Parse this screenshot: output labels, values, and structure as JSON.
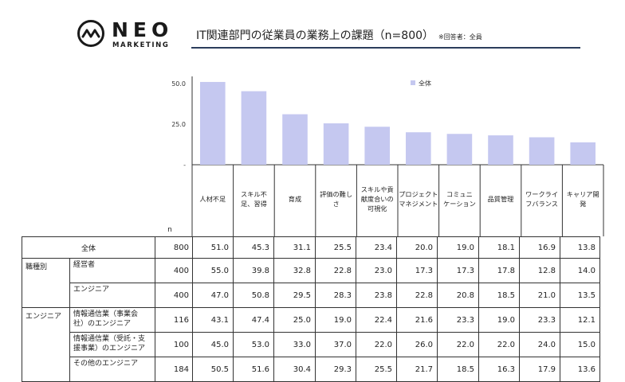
{
  "logo": {
    "main": "NEO",
    "sub": "MARKETING"
  },
  "title": "IT関連部門の従業員の業務上の課題（n=800）",
  "title_note": "※回答者：全員",
  "chart_data": {
    "type": "bar",
    "categories": [
      "人材不足",
      "スキル不足、習得",
      "育成",
      "評価の難しさ",
      "スキルや貢献度合いの可視化",
      "プロジェクトマネジメント",
      "コミュニケーション",
      "品質管理",
      "ワークライフバランス",
      "キャリア開発"
    ],
    "category_lines": [
      [
        "人材不足"
      ],
      [
        "スキル不",
        "足、習得"
      ],
      [
        "育成"
      ],
      [
        "評価の難し",
        "さ"
      ],
      [
        "スキルや貢",
        "献度合いの",
        "可視化"
      ],
      [
        "プロジェクト",
        "マネジメント"
      ],
      [
        "コミュニ",
        "ケーション"
      ],
      [
        "品質管理"
      ],
      [
        "ワークライ",
        "フバランス"
      ],
      [
        "キャリア開",
        "発"
      ]
    ],
    "series": [
      {
        "name": "全体",
        "values": [
          51.0,
          45.3,
          31.1,
          25.5,
          23.4,
          20.0,
          19.0,
          18.1,
          16.9,
          13.8
        ],
        "color": "#c5c8f0"
      }
    ],
    "ylim": [
      0,
      55
    ],
    "yticks": [
      "50.0",
      "25.0",
      "-"
    ],
    "ytick_values": [
      50,
      25,
      0
    ],
    "legend": "top-right",
    "grid": false
  },
  "table": {
    "n_header": "n",
    "rows": [
      {
        "group": "全体",
        "label": "",
        "n": "800",
        "values": [
          "51.0",
          "45.3",
          "31.1",
          "25.5",
          "23.4",
          "20.0",
          "19.0",
          "18.1",
          "16.9",
          "13.8"
        ]
      },
      {
        "group": "職種別",
        "label": "経営者",
        "n": "400",
        "values": [
          "55.0",
          "39.8",
          "32.8",
          "22.8",
          "23.0",
          "17.3",
          "17.3",
          "17.8",
          "12.8",
          "14.0"
        ]
      },
      {
        "group": "",
        "label": "エンジニア",
        "n": "400",
        "values": [
          "47.0",
          "50.8",
          "29.5",
          "28.3",
          "23.8",
          "22.8",
          "20.8",
          "18.5",
          "21.0",
          "13.5"
        ]
      },
      {
        "group": "エンジニア",
        "label": "情報通信業（事業会社）のエンジニア",
        "label_lines": [
          "情報通信業（事業会",
          "社）のエンジニア"
        ],
        "n": "116",
        "values": [
          "43.1",
          "47.4",
          "25.0",
          "19.0",
          "22.4",
          "21.6",
          "23.3",
          "19.0",
          "23.3",
          "12.1"
        ]
      },
      {
        "group": "",
        "label": "情報通信業（受託・支援事業）のエンジニア",
        "label_lines": [
          "情報通信業（受託・支",
          "援事業）のエンジニア"
        ],
        "n": "100",
        "values": [
          "45.0",
          "53.0",
          "33.0",
          "37.0",
          "22.0",
          "26.0",
          "22.0",
          "22.0",
          "24.0",
          "15.0"
        ]
      },
      {
        "group": "",
        "label": "その他のエンジニア",
        "n": "184",
        "values": [
          "50.5",
          "51.6",
          "30.4",
          "29.3",
          "25.5",
          "21.7",
          "18.5",
          "16.3",
          "17.9",
          "13.6"
        ]
      }
    ]
  }
}
